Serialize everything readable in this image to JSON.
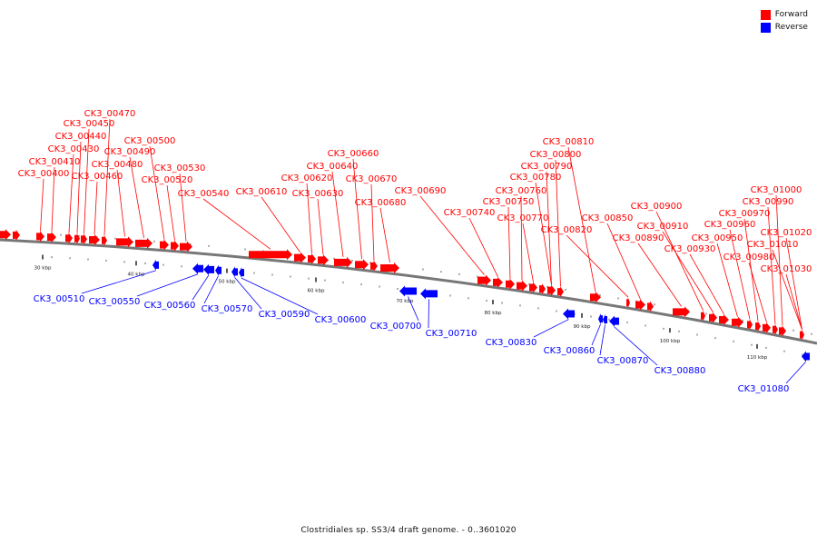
{
  "caption": "Clostridiales sp. SS3/4 draft genome. - 0..3601020",
  "legend": [
    {
      "label": "Forward",
      "color": "#ff0000"
    },
    {
      "label": "Reverse",
      "color": "#0000ff"
    }
  ],
  "colors": {
    "forward": "#ff0000",
    "reverse": "#0000ff",
    "backbone": "#777777"
  },
  "scale_ticks": [
    "30 kbp",
    "40 kbp",
    "50 kbp",
    "60 kbp",
    "70 kbp",
    "80 kbp",
    "90 kbp",
    "100 kbp",
    "110 kbp"
  ],
  "forward_genes": [
    "CK3_00400",
    "CK3_00410",
    "CK3_00430",
    "CK3_00440",
    "CK3_00450",
    "CK3_00460",
    "CK3_00470",
    "CK3_00480",
    "CK3_00490",
    "CK3_00500",
    "CK3_00520",
    "CK3_00530",
    "CK3_00540",
    "CK3_00610",
    "CK3_00620",
    "CK3_00630",
    "CK3_00640",
    "CK3_00660",
    "CK3_00670",
    "CK3_00680",
    "CK3_00690",
    "CK3_00740",
    "CK3_00750",
    "CK3_00760",
    "CK3_00770",
    "CK3_00780",
    "CK3_00790",
    "CK3_00800",
    "CK3_00810",
    "CK3_00820",
    "CK3_00850",
    "CK3_00890",
    "CK3_00900",
    "CK3_00910",
    "CK3_00930",
    "CK3_00950",
    "CK3_00960",
    "CK3_00970",
    "CK3_00980",
    "CK3_00990",
    "CK3_01000",
    "CK3_01010",
    "CK3_01020",
    "CK3_01030"
  ],
  "reverse_genes": [
    "CK3_00510",
    "CK3_00550",
    "CK3_00560",
    "CK3_00570",
    "CK3_00590",
    "CK3_00600",
    "CK3_00700",
    "CK3_00710",
    "CK3_00830",
    "CK3_00860",
    "CK3_00870",
    "CK3_00880",
    "CK3_01080"
  ]
}
